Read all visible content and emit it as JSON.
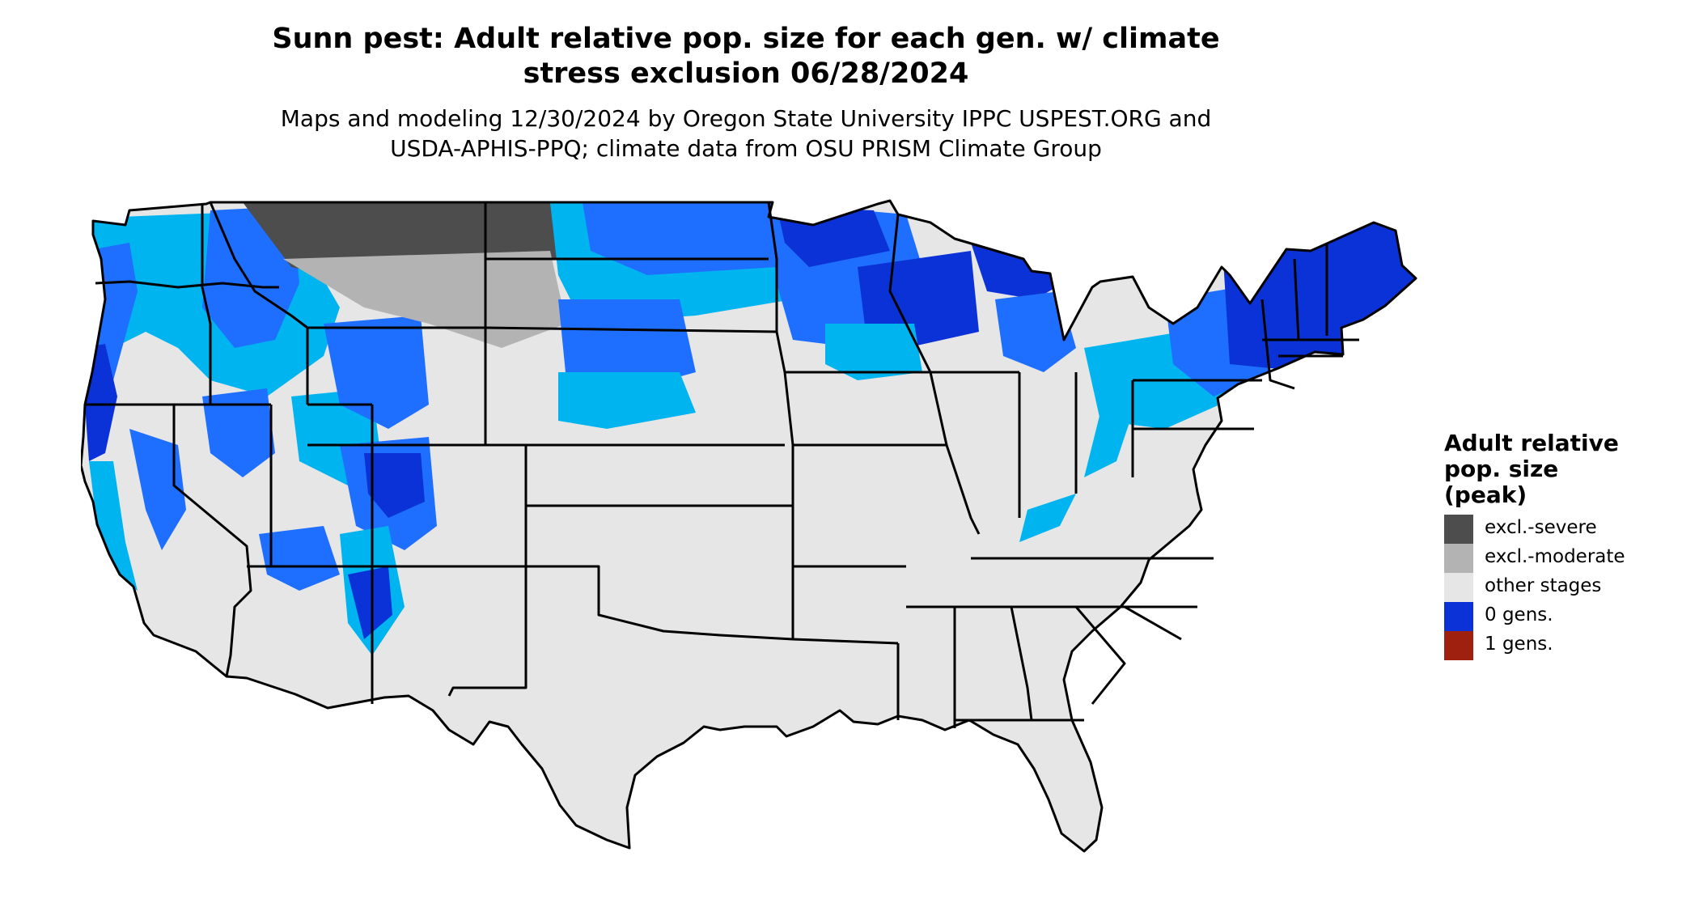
{
  "title": {
    "line1": "Sunn pest: Adult relative pop. size for each gen. w/ climate",
    "line2": "stress exclusion 06/28/2024"
  },
  "subtitle": {
    "line1": "Maps and modeling 12/30/2024 by Oregon State University IPPC USPEST.ORG and",
    "line2": "USDA-APHIS-PPQ; climate data from OSU PRISM Climate Group"
  },
  "legend": {
    "title": [
      "Adult relative",
      "pop. size",
      "(peak)"
    ],
    "items": [
      {
        "label": "excl.-severe",
        "color": "#4d4d4d"
      },
      {
        "label": "excl.-moderate",
        "color": "#b3b3b3"
      },
      {
        "label": "other stages",
        "color": "#e6e6e6"
      },
      {
        "label": "0 gens.",
        "color": "#0a32d6"
      },
      {
        "label": "1 gens.",
        "color": "#a0200f"
      }
    ]
  },
  "colors": {
    "land": "#e6e6e6",
    "blue_light": "#00b4f0",
    "blue_mid": "#1e6eff",
    "blue_dark": "#0a32d6",
    "grey_mod": "#b3b3b3",
    "grey_sev": "#4d4d4d",
    "border": "#000000"
  },
  "map": {
    "region": "conterminous-us",
    "legend_position": "right"
  }
}
